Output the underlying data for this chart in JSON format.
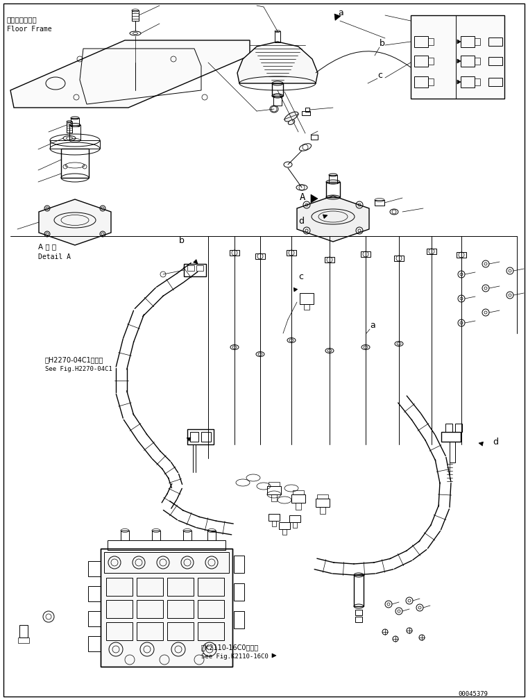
{
  "bg_color": "#ffffff",
  "line_color": "#000000",
  "fig_width": 7.61,
  "fig_height": 10.08,
  "dpi": 100,
  "part_number": "00045379",
  "labels": {
    "floor_frame_jp": "フロアフレーム",
    "floor_frame_en": "Floor Frame",
    "detail_a_jp": "A 詳 細",
    "detail_a_en": "Detail A",
    "see_fig1_jp": "第H2270-04C1図参照",
    "see_fig1_en": "See Fig.H2270-04C1",
    "see_fig2_jp": "第K2110-16C0図参照",
    "see_fig2_en": "See Fig.K2110-16C0"
  }
}
